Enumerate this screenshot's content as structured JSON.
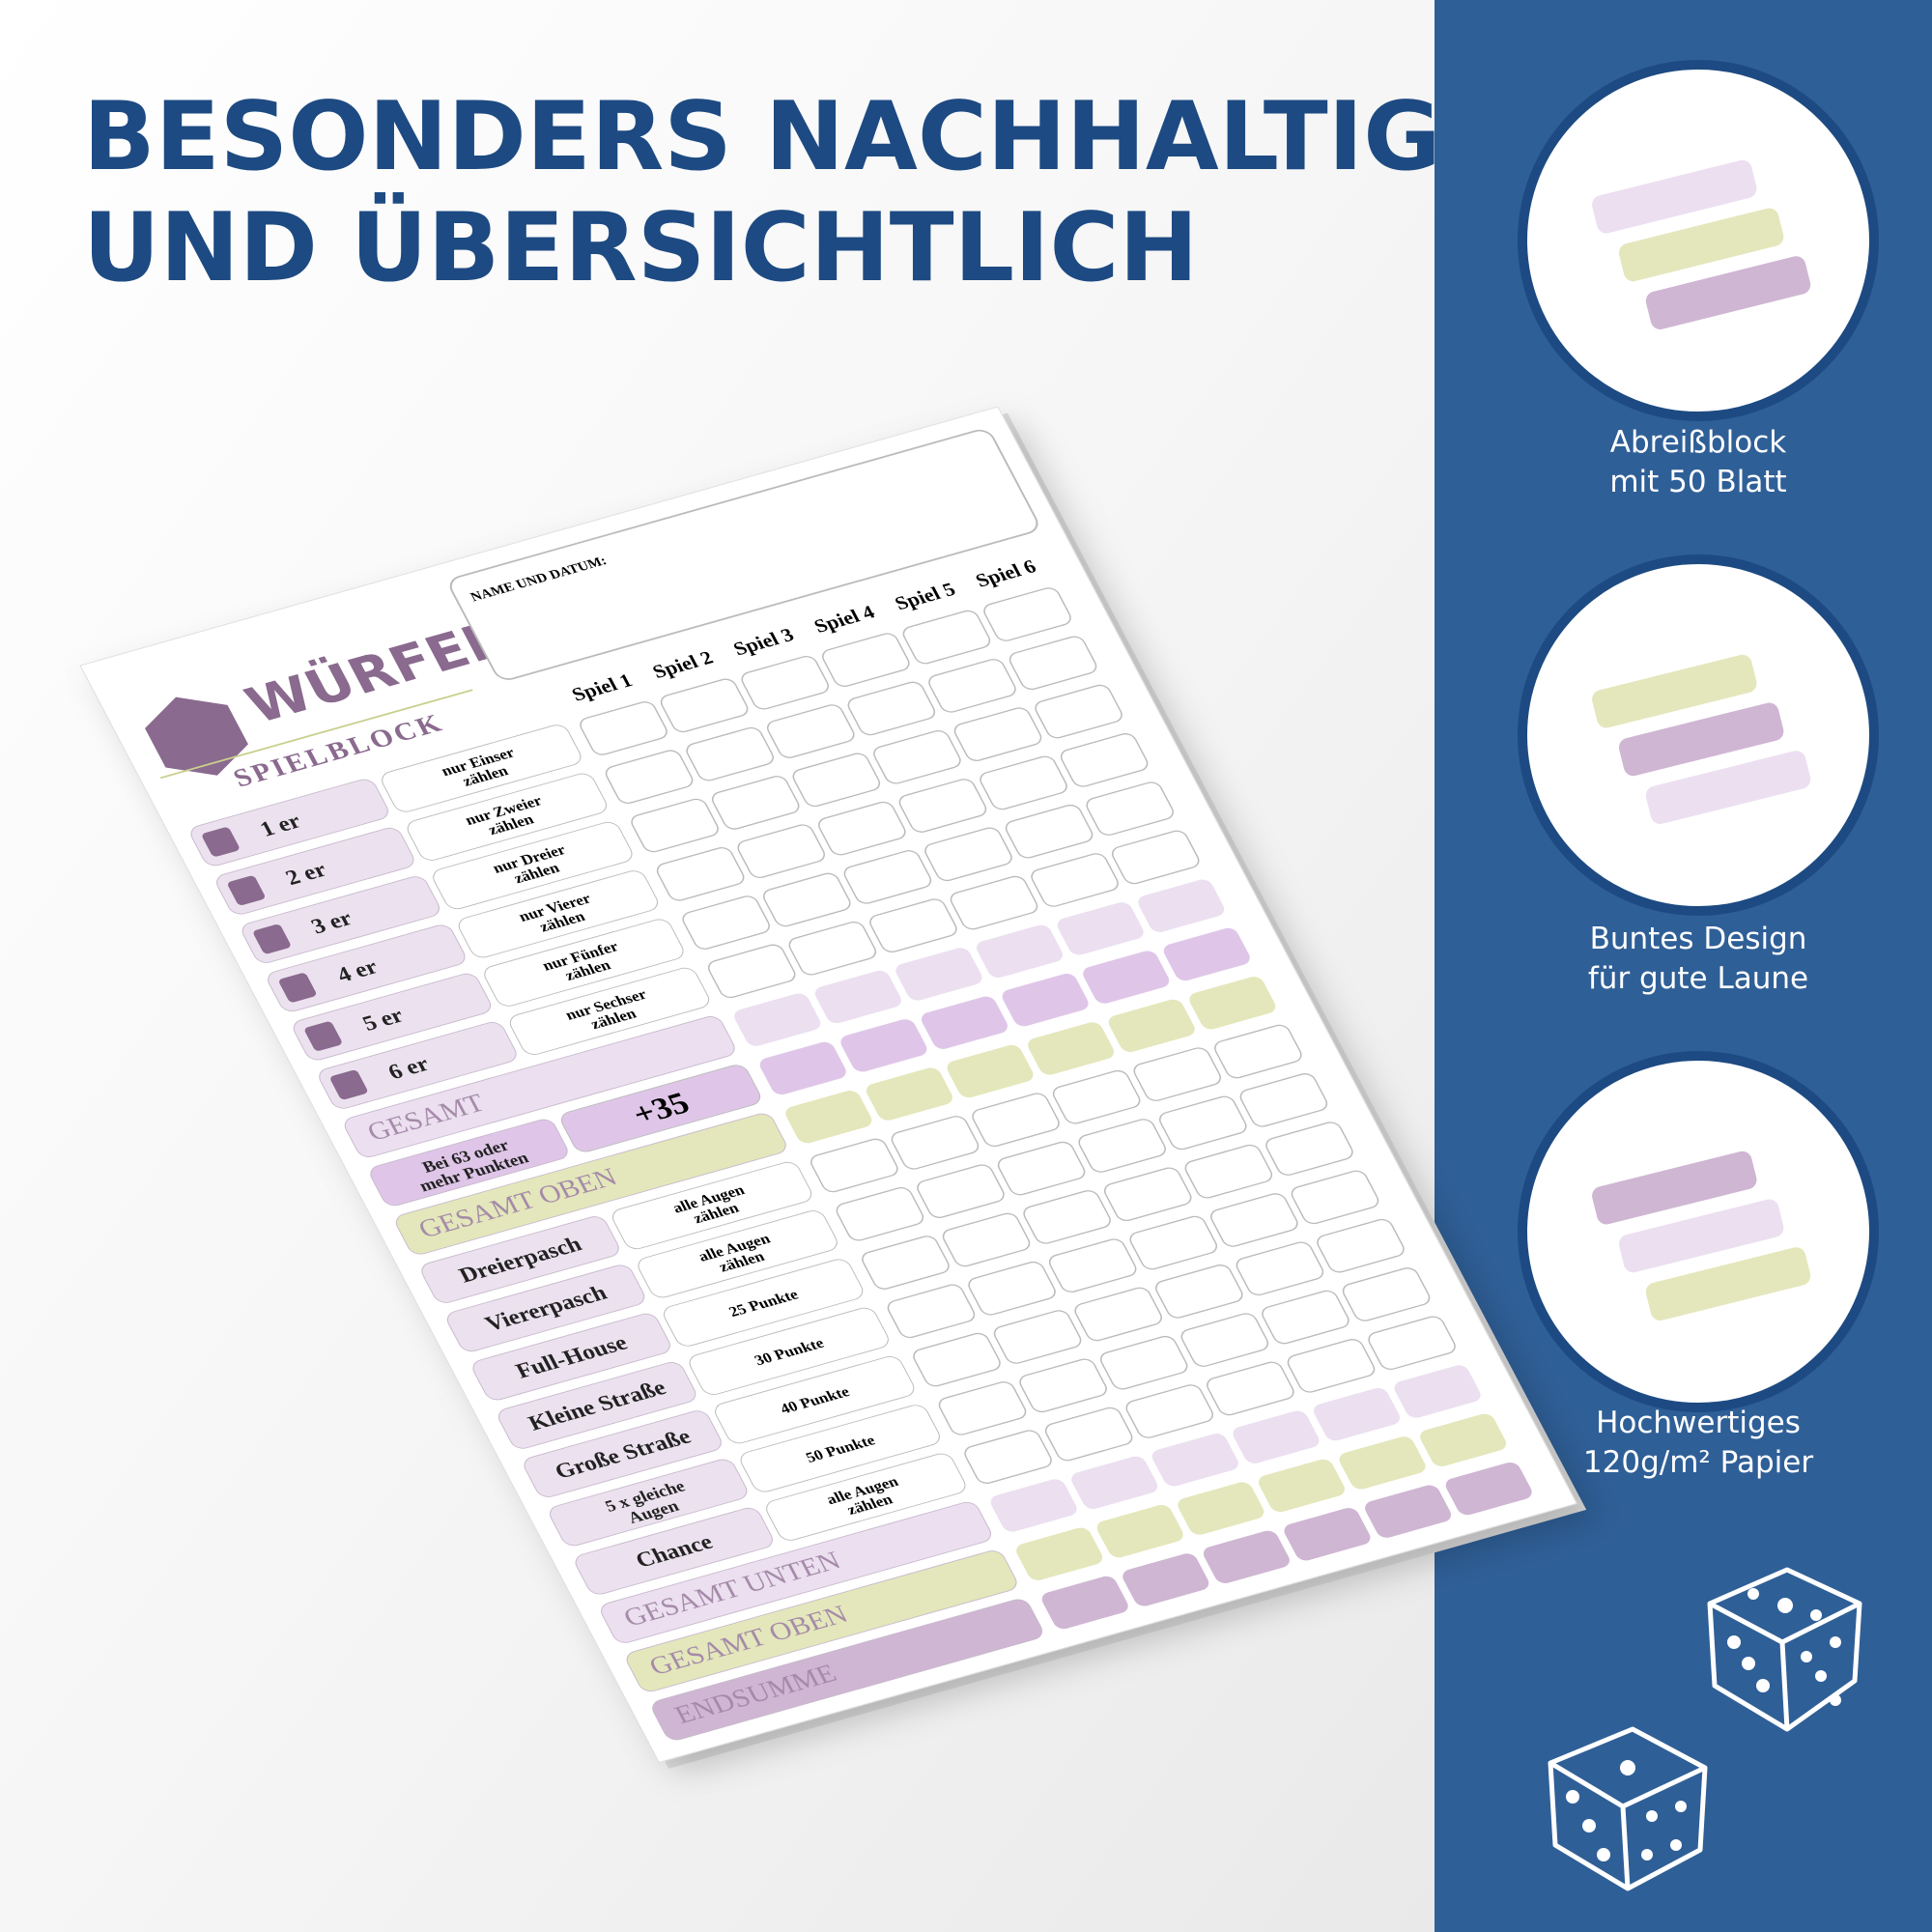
{
  "headline": [
    "BESONDERS NACHHALTIG",
    "UND ÜBERSICHTLICH"
  ],
  "sheet": {
    "logo_title": "WÜRFEL",
    "logo_subtitle": "SPIELBLOCK",
    "name_label": "NAME UND DATUM:",
    "games": [
      "Spiel 1",
      "Spiel 2",
      "Spiel 3",
      "Spiel 4",
      "Spiel 5",
      "Spiel 6"
    ],
    "rows": [
      {
        "label": [
          "1 er"
        ],
        "hint": [
          "nur Einser",
          "zählen"
        ]
      },
      {
        "label": [
          "2 er"
        ],
        "hint": [
          "nur Zweier",
          "zählen"
        ]
      },
      {
        "label": [
          "3 er"
        ],
        "hint": [
          "nur Dreier",
          "zählen"
        ]
      },
      {
        "label": [
          "4 er"
        ],
        "hint": [
          "nur Vierer",
          "zählen"
        ]
      },
      {
        "label": [
          "5 er"
        ],
        "hint": [
          "nur Fünfer",
          "zählen"
        ]
      },
      {
        "label": [
          "6 er"
        ],
        "hint": [
          "nur Sechser",
          "zählen"
        ]
      },
      {
        "label": [
          "GESAMT"
        ],
        "color": "#ebdff0"
      },
      {
        "label": [
          "Bei 63 oder",
          "mehr Punkten"
        ],
        "hint": [
          "+35"
        ],
        "color": "#dfc6e8"
      },
      {
        "label": [
          "GESAMT OBEN"
        ],
        "color": "#e4e7bb"
      },
      {
        "label": [
          "Dreierpasch"
        ],
        "hint": [
          "alle Augen",
          "zählen"
        ]
      },
      {
        "label": [
          "Viererpasch"
        ],
        "hint": [
          "alle Augen",
          "zählen"
        ]
      },
      {
        "label": [
          "Full-House"
        ],
        "hint": [
          "25 Punkte"
        ]
      },
      {
        "label": [
          "Kleine Straße"
        ],
        "hint": [
          "30 Punkte"
        ]
      },
      {
        "label": [
          "Große Straße"
        ],
        "hint": [
          "40 Punkte"
        ]
      },
      {
        "label": [
          "5 x gleiche",
          "Augen"
        ],
        "hint": [
          "50 Punkte"
        ]
      },
      {
        "label": [
          "Chance"
        ],
        "hint": [
          "alle Augen",
          "zählen"
        ]
      },
      {
        "label": [
          "GESAMT UNTEN"
        ],
        "color": "#ebdff0"
      },
      {
        "label": [
          "GESAMT OBEN"
        ],
        "color": "#e4e7bb"
      },
      {
        "label": [
          "ENDSUMME"
        ],
        "color": "#cfb6d3"
      }
    ]
  },
  "features": [
    {
      "caption": [
        "Abreißblock",
        "mit 50 Blatt"
      ]
    },
    {
      "caption": [
        "Buntes Design",
        "für gute Laune"
      ]
    },
    {
      "caption": [
        "Hochwertiges",
        "120g/m² Papier"
      ]
    }
  ]
}
